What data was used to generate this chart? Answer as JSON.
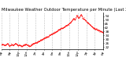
{
  "title": "Milwaukee Weather Outdoor Temperature per Minute (Last 24 Hours)",
  "background_color": "#ffffff",
  "line_color": "#ff0000",
  "grid_color": "#888888",
  "ylim": [
    20,
    58
  ],
  "yticks": [
    22,
    26,
    30,
    34,
    38,
    42,
    46,
    50,
    54
  ],
  "temp_profile": [
    [
      0.0,
      25
    ],
    [
      0.04,
      24
    ],
    [
      0.06,
      26
    ],
    [
      0.08,
      23
    ],
    [
      0.1,
      25
    ],
    [
      0.12,
      24
    ],
    [
      0.14,
      26
    ],
    [
      0.16,
      24
    ],
    [
      0.18,
      24
    ],
    [
      0.2,
      23
    ],
    [
      0.22,
      24
    ],
    [
      0.24,
      25
    ],
    [
      0.26,
      24
    ],
    [
      0.28,
      23
    ],
    [
      0.3,
      25
    ],
    [
      0.32,
      26
    ],
    [
      0.35,
      27
    ],
    [
      0.38,
      29
    ],
    [
      0.4,
      30
    ],
    [
      0.43,
      32
    ],
    [
      0.46,
      33
    ],
    [
      0.48,
      35
    ],
    [
      0.5,
      36
    ],
    [
      0.52,
      37
    ],
    [
      0.54,
      38
    ],
    [
      0.56,
      40
    ],
    [
      0.58,
      41
    ],
    [
      0.6,
      42
    ],
    [
      0.63,
      44
    ],
    [
      0.65,
      45
    ],
    [
      0.67,
      47
    ],
    [
      0.69,
      49
    ],
    [
      0.7,
      51
    ],
    [
      0.71,
      52
    ],
    [
      0.72,
      50
    ],
    [
      0.73,
      53
    ],
    [
      0.74,
      55
    ],
    [
      0.75,
      53
    ],
    [
      0.76,
      52
    ],
    [
      0.77,
      54
    ],
    [
      0.78,
      56
    ],
    [
      0.79,
      54
    ],
    [
      0.8,
      51
    ],
    [
      0.81,
      52
    ],
    [
      0.82,
      50
    ],
    [
      0.83,
      49
    ],
    [
      0.84,
      48
    ],
    [
      0.85,
      47
    ],
    [
      0.86,
      46
    ],
    [
      0.87,
      45
    ],
    [
      0.88,
      44
    ],
    [
      0.89,
      43
    ],
    [
      0.9,
      42
    ],
    [
      0.92,
      41
    ],
    [
      0.94,
      40
    ],
    [
      0.96,
      39
    ],
    [
      0.98,
      38
    ],
    [
      1.0,
      37
    ]
  ],
  "xtick_labels": [
    "6p",
    "8p",
    "10p",
    "12a",
    "2a",
    "4a",
    "6a",
    "8a",
    "10a",
    "12p",
    "2p",
    "4p",
    "6p"
  ],
  "xtick_positions": [
    0.0,
    0.083,
    0.167,
    0.25,
    0.333,
    0.417,
    0.5,
    0.583,
    0.667,
    0.75,
    0.833,
    0.917,
    1.0
  ],
  "title_fontsize": 3.8,
  "tick_fontsize": 3.0,
  "marker_size": 0.6
}
